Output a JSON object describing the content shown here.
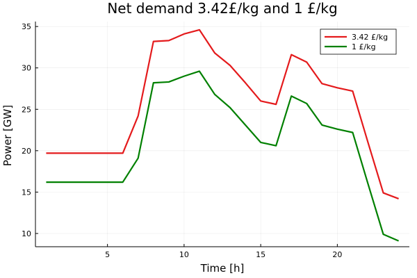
{
  "chart_data": {
    "type": "line",
    "title": "Net demand 3.42£/kg and 1 £/kg",
    "xlabel": "Time [h]",
    "ylabel": "Power [GW]",
    "xlim": [
      0.3,
      24.7
    ],
    "ylim": [
      8.4,
      35.6
    ],
    "xticks": [
      5,
      10,
      15,
      20
    ],
    "yticks": [
      10,
      15,
      20,
      25,
      30,
      35
    ],
    "grid": true,
    "legend_position": "top-right",
    "x": [
      1,
      2,
      3,
      4,
      5,
      6,
      7,
      8,
      9,
      10,
      11,
      12,
      13,
      14,
      15,
      16,
      17,
      18,
      19,
      20,
      21,
      22,
      23,
      24
    ],
    "series": [
      {
        "name": "3.42 £/kg",
        "color": "#e41a1c",
        "values": [
          19.7,
          19.7,
          19.7,
          19.7,
          19.7,
          19.7,
          24.2,
          33.2,
          33.3,
          34.1,
          34.6,
          31.8,
          30.3,
          28.2,
          26.0,
          25.6,
          31.6,
          30.7,
          28.1,
          27.6,
          27.2,
          21.0,
          14.9,
          14.2
        ]
      },
      {
        "name": "1 £/kg",
        "color": "#008000",
        "values": [
          16.2,
          16.2,
          16.2,
          16.2,
          16.2,
          16.2,
          19.1,
          28.2,
          28.3,
          29.0,
          29.6,
          26.8,
          25.2,
          23.1,
          21.0,
          20.6,
          26.6,
          25.7,
          23.1,
          22.6,
          22.2,
          16.0,
          9.9,
          9.1
        ]
      }
    ]
  }
}
